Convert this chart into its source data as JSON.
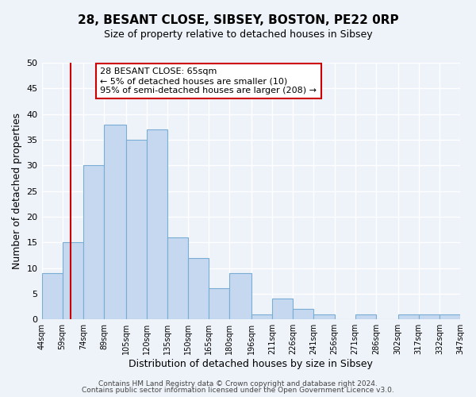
{
  "title": "28, BESANT CLOSE, SIBSEY, BOSTON, PE22 0RP",
  "subtitle": "Size of property relative to detached houses in Sibsey",
  "xlabel": "Distribution of detached houses by size in Sibsey",
  "ylabel": "Number of detached properties",
  "bin_edges": [
    44,
    59,
    74,
    89,
    105,
    120,
    135,
    150,
    165,
    180,
    196,
    211,
    226,
    241,
    256,
    271,
    286,
    302,
    317,
    332,
    347
  ],
  "bin_labels": [
    "44sqm",
    "59sqm",
    "74sqm",
    "89sqm",
    "105sqm",
    "120sqm",
    "135sqm",
    "150sqm",
    "165sqm",
    "180sqm",
    "196sqm",
    "211sqm",
    "226sqm",
    "241sqm",
    "256sqm",
    "271sqm",
    "286sqm",
    "302sqm",
    "317sqm",
    "332sqm",
    "347sqm"
  ],
  "counts": [
    9,
    15,
    30,
    38,
    35,
    37,
    16,
    12,
    6,
    9,
    1,
    4,
    2,
    1,
    0,
    1,
    0,
    1,
    1,
    1
  ],
  "bar_color": "#c5d8f0",
  "bar_edge_color": "#7aadd4",
  "vline_x": 65,
  "vline_color": "#cc0000",
  "annotation_line1": "28 BESANT CLOSE: 65sqm",
  "annotation_line2": "← 5% of detached houses are smaller (10)",
  "annotation_line3": "95% of semi-detached houses are larger (208) →",
  "annotation_box_edge": "#cc0000",
  "annotation_box_bg": "white",
  "ylim": [
    0,
    50
  ],
  "yticks": [
    0,
    5,
    10,
    15,
    20,
    25,
    30,
    35,
    40,
    45,
    50
  ],
  "footer1": "Contains HM Land Registry data © Crown copyright and database right 2024.",
  "footer2": "Contains public sector information licensed under the Open Government Licence v3.0.",
  "bg_color": "#eef2f9",
  "grid_color": "white"
}
